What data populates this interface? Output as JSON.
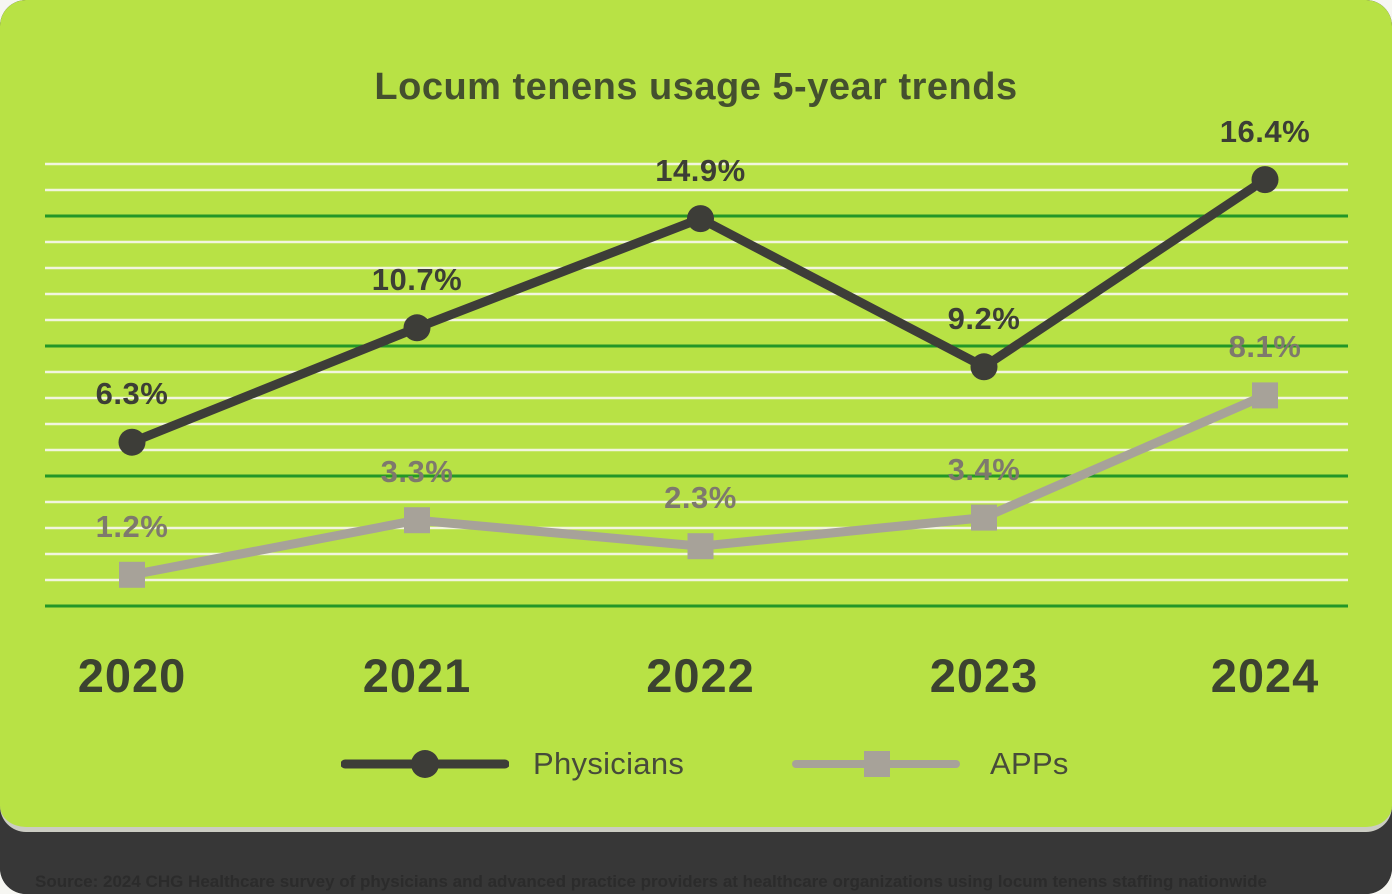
{
  "chart_data": {
    "type": "line",
    "title": "Locum tenens usage 5-year trends",
    "xlabel": "",
    "ylabel": "",
    "unit": "%",
    "categories": [
      "2020",
      "2021",
      "2022",
      "2023",
      "2024"
    ],
    "series": [
      {
        "name": "Physicians",
        "values": [
          6.3,
          10.7,
          14.9,
          9.2,
          16.4
        ],
        "labels": [
          "6.3%",
          "10.7%",
          "14.9%",
          "9.2%",
          "16.4%"
        ],
        "color": "#3d3d38",
        "label_color": "#3c3e35",
        "marker": "circle"
      },
      {
        "name": "APPs",
        "values": [
          1.2,
          3.3,
          2.3,
          3.4,
          8.1
        ],
        "labels": [
          "1.2%",
          "3.3%",
          "2.3%",
          "3.4%",
          "8.1%"
        ],
        "color": "#a7a299",
        "label_color": "#7e796d",
        "marker": "square"
      }
    ],
    "ylim": [
      0,
      17.5
    ],
    "gridline_step": 1,
    "emphasized_gridline_step": 5,
    "grid": true,
    "legend_position": "bottom"
  },
  "colors": {
    "panel_background": "#b8e245",
    "gridline_minor": "#f2f5dd",
    "gridline_major": "#229727",
    "title_text": "#44502e",
    "axis_text": "#3c4330",
    "divider": "#cbccc3",
    "footer_background": "#373737",
    "footer_text": "#2b2b2b"
  },
  "footer": {
    "source": "Source: 2024 CHG Healthcare survey of physicians and advanced practice providers at healthcare organizations using locum tenens staffing nationwide"
  }
}
